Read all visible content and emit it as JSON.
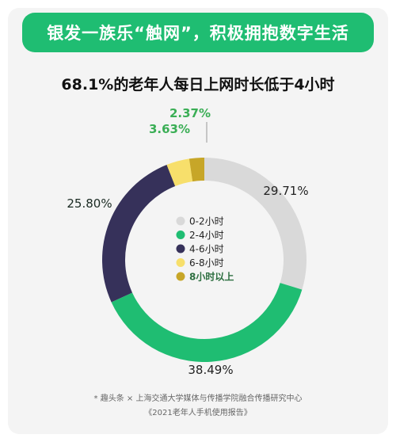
{
  "header": {
    "banner_text": "银发一族乐“触网”，积极拥抱数字生活"
  },
  "chart_data": {
    "type": "donut",
    "title": "68.1%的老年人每日上网时长低于4小时",
    "categories": [
      "0-2小时",
      "2-4小时",
      "4-6小时",
      "6-8小时",
      "8小时以上"
    ],
    "values": [
      29.71,
      38.49,
      25.8,
      3.63,
      2.37
    ],
    "value_labels": [
      "29.71%",
      "38.49%",
      "25.80%",
      "3.63%",
      "2.37%"
    ],
    "colors": [
      "#d9d9d9",
      "#1fbd72",
      "#36315a",
      "#f7df6b",
      "#c7a628"
    ],
    "legend_position": "center"
  },
  "footnote": {
    "line1": "* 趣头条 × 上海交通大学媒体与传播学院融合传播研究中心",
    "line2": "《2021老年人手机使用报告》"
  }
}
